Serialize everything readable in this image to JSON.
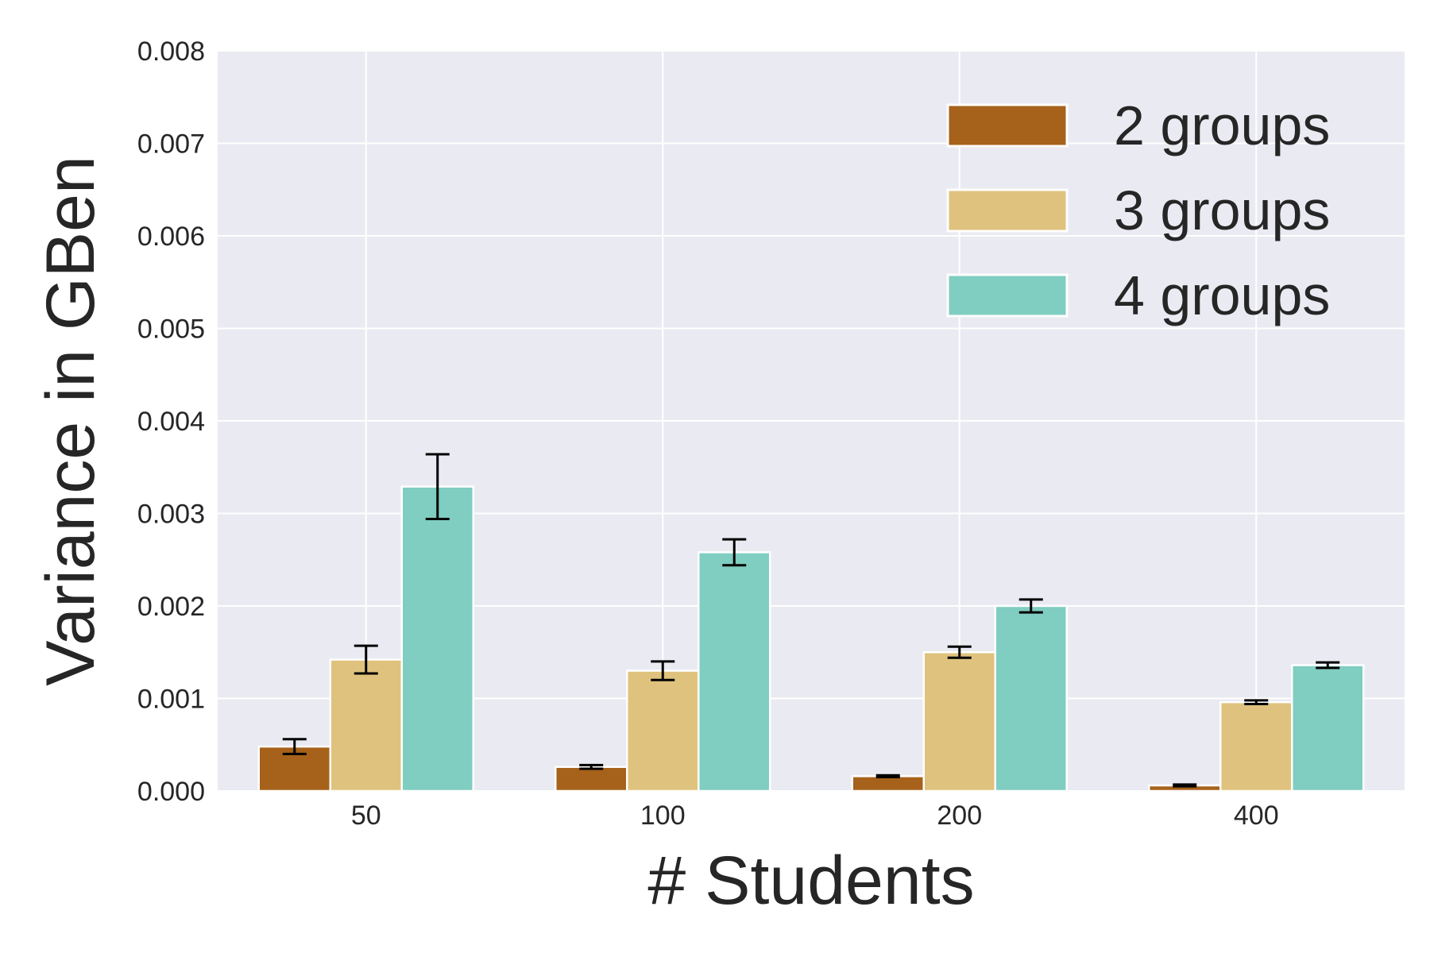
{
  "chart_data": {
    "type": "bar",
    "title": "",
    "xlabel": "# Students",
    "ylabel": "Variance in GBen",
    "categories": [
      "50",
      "100",
      "200",
      "400"
    ],
    "ylim": [
      0,
      0.008
    ],
    "yticks": [
      "0.000",
      "0.001",
      "0.002",
      "0.003",
      "0.004",
      "0.005",
      "0.006",
      "0.007",
      "0.008"
    ],
    "grid": true,
    "legend_position": "top-right",
    "series": [
      {
        "name": "2 groups",
        "color": "#A6611A",
        "values": [
          0.00048,
          0.00026,
          0.00016,
          6e-05
        ],
        "errors": [
          8e-05,
          2e-05,
          1e-05,
          1e-05
        ]
      },
      {
        "name": "3 groups",
        "color": "#DFC27D",
        "values": [
          0.00142,
          0.0013,
          0.0015,
          0.00096
        ],
        "errors": [
          0.00015,
          0.0001,
          6e-05,
          2e-05
        ]
      },
      {
        "name": "4 groups",
        "color": "#80CDC1",
        "values": [
          0.00329,
          0.00258,
          0.002,
          0.00136
        ],
        "errors": [
          0.00035,
          0.00014,
          7e-05,
          3e-05
        ]
      }
    ]
  }
}
